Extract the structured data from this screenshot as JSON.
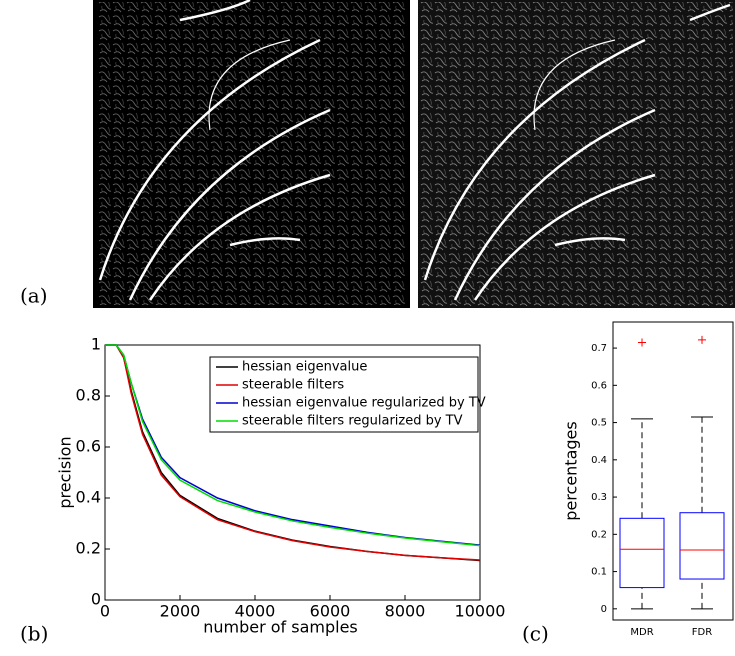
{
  "panel_labels": [
    "(a)",
    "(b)",
    "(c)"
  ],
  "chart_data": [
    {
      "type": "line",
      "xlabel": "number of samples",
      "ylabel": "precision",
      "x": [
        0,
        300,
        500,
        700,
        1000,
        1500,
        2000,
        3000,
        4000,
        5000,
        6000,
        7000,
        8000,
        9000,
        10000
      ],
      "series": [
        {
          "name": "hessian eigenvalue",
          "color": "#000000",
          "values": [
            1,
            1,
            0.95,
            0.82,
            0.66,
            0.5,
            0.41,
            0.32,
            0.27,
            0.235,
            0.21,
            0.19,
            0.175,
            0.165,
            0.155
          ]
        },
        {
          "name": "steerable filters",
          "color": "#e00000",
          "values": [
            1,
            1,
            0.95,
            0.81,
            0.65,
            0.49,
            0.405,
            0.315,
            0.268,
            0.233,
            0.208,
            0.19,
            0.175,
            0.165,
            0.157
          ]
        },
        {
          "name": "hessian eigenvalue regularized by TV",
          "color": "#0000d0",
          "values": [
            1,
            1,
            0.96,
            0.85,
            0.71,
            0.56,
            0.48,
            0.4,
            0.35,
            0.315,
            0.29,
            0.265,
            0.245,
            0.23,
            0.215
          ]
        },
        {
          "name": "steerable filters regularized by TV",
          "color": "#00dd00",
          "values": [
            1,
            1,
            0.96,
            0.85,
            0.7,
            0.55,
            0.47,
            0.39,
            0.345,
            0.31,
            0.285,
            0.262,
            0.243,
            0.228,
            0.213
          ]
        }
      ],
      "xlim": [
        0,
        10000
      ],
      "ylim": [
        0,
        1
      ],
      "xticks": [
        0,
        2000,
        4000,
        6000,
        8000,
        10000
      ],
      "yticks": [
        0,
        0.2,
        0.4,
        0.6,
        0.8,
        1
      ],
      "legend": "upper right"
    },
    {
      "type": "box",
      "ylabel": "percentages",
      "categories": [
        "MDR",
        "FDR"
      ],
      "boxes": [
        {
          "min": 0,
          "q1": 0.057,
          "median": 0.16,
          "q3": 0.243,
          "max": 0.51,
          "outliers": [
            0.715
          ]
        },
        {
          "min": 0,
          "q1": 0.08,
          "median": 0.158,
          "q3": 0.258,
          "max": 0.515,
          "outliers": [
            0.722
          ]
        }
      ],
      "box_color": "#0000ff",
      "median_color": "#ff0000",
      "outlier_color": "#ff0000",
      "ylim": [
        -0.03,
        0.77
      ],
      "yticks": [
        0,
        0.1,
        0.2,
        0.3,
        0.4,
        0.5,
        0.6,
        0.7
      ]
    }
  ]
}
